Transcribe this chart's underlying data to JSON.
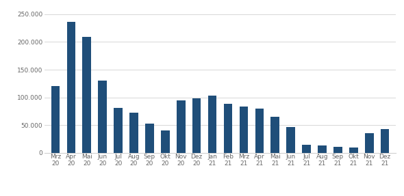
{
  "categories": [
    [
      "Mrz",
      "20"
    ],
    [
      "Apr",
      "20"
    ],
    [
      "Mai",
      "20"
    ],
    [
      "Jun",
      "20"
    ],
    [
      "Jul",
      "20"
    ],
    [
      "Aug",
      "20"
    ],
    [
      "Sep",
      "20"
    ],
    [
      "Okt",
      "20"
    ],
    [
      "Nov",
      "20"
    ],
    [
      "Dez",
      "20"
    ],
    [
      "Jan",
      "21"
    ],
    [
      "Feb",
      "21"
    ],
    [
      "Mrz",
      "21"
    ],
    [
      "Apr",
      "21"
    ],
    [
      "Mai",
      "21"
    ],
    [
      "Jun",
      "21"
    ],
    [
      "Jul",
      "21"
    ],
    [
      "Aug",
      "21"
    ],
    [
      "Sep",
      "21"
    ],
    [
      "Okt",
      "21"
    ],
    [
      "Nov",
      "21"
    ],
    [
      "Dez",
      "21"
    ]
  ],
  "values": [
    120000,
    236000,
    209000,
    130000,
    81000,
    73000,
    53000,
    41000,
    95000,
    98000,
    103000,
    88000,
    83000,
    80000,
    65000,
    47000,
    14000,
    13000,
    11000,
    10000,
    36000,
    43000
  ],
  "bar_color": "#1f4e79",
  "yticks": [
    0,
    50000,
    100000,
    150000,
    200000,
    250000
  ],
  "ytick_labels": [
    "0",
    "50.000",
    "100.000",
    "150.000",
    "200.000",
    "250.000"
  ],
  "ylim": [
    0,
    265000
  ],
  "background_color": "#ffffff",
  "grid_color": "#d0d0d0",
  "tick_label_fontsize": 6.5,
  "bar_width": 0.55
}
